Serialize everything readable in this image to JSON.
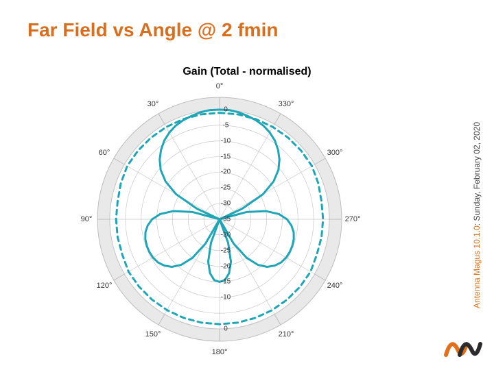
{
  "title": {
    "text": "Far Field vs Angle @ 2 fmin",
    "color": "#d96f1e",
    "fontsize": 28
  },
  "chart": {
    "title": "Gain (Total - normalised)",
    "type": "polar",
    "background": "#ffffff",
    "axis_color": "#bdbdbd",
    "outer_ring_fill": "#e9e9e9",
    "grid_color": "#c9c9c9",
    "angle_label_color": "#333333",
    "angle_label_fontsize": 11,
    "r_label_color": "#333333",
    "r_label_fontsize": 10,
    "r_min": -35,
    "r_max": 0,
    "r_step": 5,
    "angle_step": 30,
    "angle_labels": [
      "0°",
      "330°",
      "300°",
      "270°",
      "240°",
      "210°",
      "180°",
      "150°",
      "120°",
      "90°",
      "60°",
      "30°"
    ],
    "angle_label_positions_deg": [
      0,
      30,
      60,
      90,
      120,
      150,
      180,
      210,
      240,
      270,
      300,
      330
    ],
    "r_ticks_top": [
      0,
      -5,
      -10,
      -15,
      -20,
      -25,
      -30,
      -35
    ],
    "r_ticks_bottom": [
      -35,
      -30,
      -25,
      -20,
      -15,
      -10,
      0
    ],
    "series": [
      {
        "name": "dashed",
        "style": "dashed",
        "color": "#1ea6b7",
        "line_width": 3,
        "dash": "7 6",
        "points_deg_gain": [
          [
            0,
            -1
          ],
          [
            10,
            -1
          ],
          [
            20,
            -1
          ],
          [
            30,
            -1
          ],
          [
            40,
            -1
          ],
          [
            50,
            -1
          ],
          [
            60,
            -1
          ],
          [
            70,
            -1.5
          ],
          [
            80,
            -2
          ],
          [
            90,
            -2
          ],
          [
            100,
            -2
          ],
          [
            110,
            -2
          ],
          [
            120,
            -1.5
          ],
          [
            130,
            -1.5
          ],
          [
            140,
            -1.5
          ],
          [
            150,
            -1.5
          ],
          [
            160,
            -1.5
          ],
          [
            170,
            -1.5
          ],
          [
            180,
            -1.5
          ],
          [
            190,
            -1.5
          ],
          [
            200,
            -1.5
          ],
          [
            210,
            -1.5
          ],
          [
            220,
            -1.5
          ],
          [
            230,
            -1.5
          ],
          [
            240,
            -1.5
          ],
          [
            250,
            -2
          ],
          [
            260,
            -2
          ],
          [
            270,
            -2
          ],
          [
            280,
            -2
          ],
          [
            290,
            -1.5
          ],
          [
            300,
            -1
          ],
          [
            310,
            -1
          ],
          [
            320,
            -1
          ],
          [
            330,
            -1
          ],
          [
            340,
            -1
          ],
          [
            350,
            -1
          ],
          [
            360,
            -1
          ]
        ]
      },
      {
        "name": "solid",
        "style": "solid",
        "color": "#1ea6b7",
        "line_width": 3,
        "points_deg_gain": [
          [
            0,
            0
          ],
          [
            5,
            0
          ],
          [
            10,
            -0.3
          ],
          [
            15,
            -0.8
          ],
          [
            20,
            -1.3
          ],
          [
            25,
            -2
          ],
          [
            30,
            -3
          ],
          [
            35,
            -4.3
          ],
          [
            40,
            -6
          ],
          [
            45,
            -8
          ],
          [
            50,
            -10.5
          ],
          [
            55,
            -14
          ],
          [
            60,
            -19
          ],
          [
            65,
            -27
          ],
          [
            68,
            -35
          ],
          [
            72,
            -35
          ],
          [
            75,
            -26
          ],
          [
            80,
            -20
          ],
          [
            85,
            -16
          ],
          [
            90,
            -13.5
          ],
          [
            95,
            -12
          ],
          [
            100,
            -11
          ],
          [
            105,
            -10.5
          ],
          [
            110,
            -10.3
          ],
          [
            115,
            -10.3
          ],
          [
            120,
            -10.5
          ],
          [
            125,
            -11
          ],
          [
            130,
            -12
          ],
          [
            135,
            -13.5
          ],
          [
            140,
            -16
          ],
          [
            145,
            -20
          ],
          [
            150,
            -26
          ],
          [
            153,
            -35
          ],
          [
            157,
            -35
          ],
          [
            160,
            -27
          ],
          [
            165,
            -21
          ],
          [
            170,
            -17.5
          ],
          [
            175,
            -15.5
          ],
          [
            180,
            -15
          ],
          [
            185,
            -15.5
          ],
          [
            190,
            -17.5
          ],
          [
            195,
            -21
          ],
          [
            200,
            -27
          ],
          [
            203,
            -35
          ],
          [
            207,
            -35
          ],
          [
            210,
            -26
          ],
          [
            215,
            -20
          ],
          [
            220,
            -16
          ],
          [
            225,
            -13.5
          ],
          [
            230,
            -12
          ],
          [
            235,
            -11
          ],
          [
            240,
            -10.5
          ],
          [
            245,
            -10.3
          ],
          [
            250,
            -10.3
          ],
          [
            255,
            -10.5
          ],
          [
            260,
            -11
          ],
          [
            265,
            -12
          ],
          [
            270,
            -13.5
          ],
          [
            275,
            -16
          ],
          [
            280,
            -20
          ],
          [
            285,
            -26
          ],
          [
            288,
            -35
          ],
          [
            292,
            -35
          ],
          [
            295,
            -27
          ],
          [
            300,
            -19
          ],
          [
            305,
            -14
          ],
          [
            310,
            -10.5
          ],
          [
            315,
            -8
          ],
          [
            320,
            -6
          ],
          [
            325,
            -4.3
          ],
          [
            330,
            -3
          ],
          [
            335,
            -2
          ],
          [
            340,
            -1.3
          ],
          [
            345,
            -0.8
          ],
          [
            350,
            -0.3
          ],
          [
            355,
            0
          ],
          [
            360,
            0
          ]
        ]
      }
    ]
  },
  "footer": {
    "product": "Antenna Magus 10.1.0",
    "product_color": "#d96f1e",
    "date": ": Sunday, February 02, 2020",
    "date_color": "#444444",
    "fontsize": 12
  },
  "logo": {
    "color1": "#e1701d",
    "color2": "#2b2b2b"
  }
}
